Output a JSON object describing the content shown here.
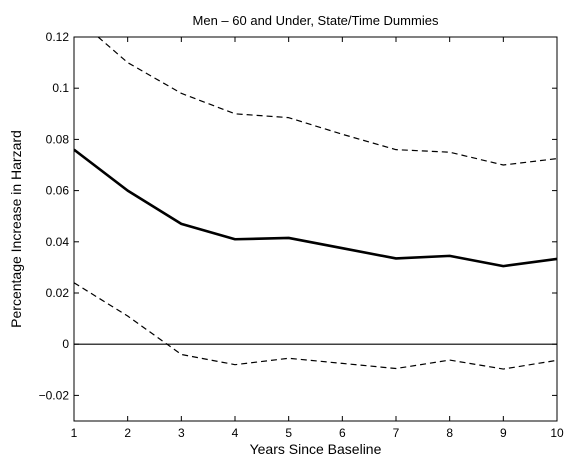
{
  "chart_data": {
    "type": "line",
    "title": "Men – 60 and Under, State/Time Dummies",
    "xlabel": "Years Since Baseline",
    "ylabel": "Percentage Increase in Harzard",
    "xlim": [
      1,
      10
    ],
    "ylim": [
      -0.03,
      0.12
    ],
    "xticks": [
      1,
      2,
      3,
      4,
      5,
      6,
      7,
      8,
      9,
      10
    ],
    "yticks": [
      -0.02,
      0,
      0.02,
      0.04,
      0.06,
      0.08,
      0.1,
      0.12
    ],
    "ytick_labels": [
      "−0.02",
      "0",
      "0.02",
      "0.04",
      "0.06",
      "0.08",
      "0.1",
      "0.12"
    ],
    "grid": false,
    "legend": "none",
    "reference_line": 0,
    "x": [
      1,
      2,
      3,
      4,
      5,
      6,
      7,
      8,
      9,
      10
    ],
    "series": [
      {
        "role": "estimate",
        "style": "solid-thick",
        "color": "#000000",
        "values": [
          0.076,
          0.06,
          0.047,
          0.041,
          0.0415,
          0.0375,
          0.0335,
          0.0345,
          0.0305,
          0.0333
        ]
      },
      {
        "role": "upper-bound",
        "style": "dashed",
        "color": "#000000",
        "x": [
          1.45,
          2,
          3,
          4,
          5,
          6,
          7,
          8,
          9,
          10
        ],
        "values": [
          0.12,
          0.11,
          0.098,
          0.09,
          0.0885,
          0.082,
          0.076,
          0.075,
          0.07,
          0.0725
        ]
      },
      {
        "role": "lower-bound",
        "style": "dashed",
        "color": "#000000",
        "values": [
          0.024,
          0.011,
          -0.004,
          -0.008,
          -0.0055,
          -0.0075,
          -0.0095,
          -0.0062,
          -0.0097,
          -0.0063
        ]
      }
    ]
  }
}
